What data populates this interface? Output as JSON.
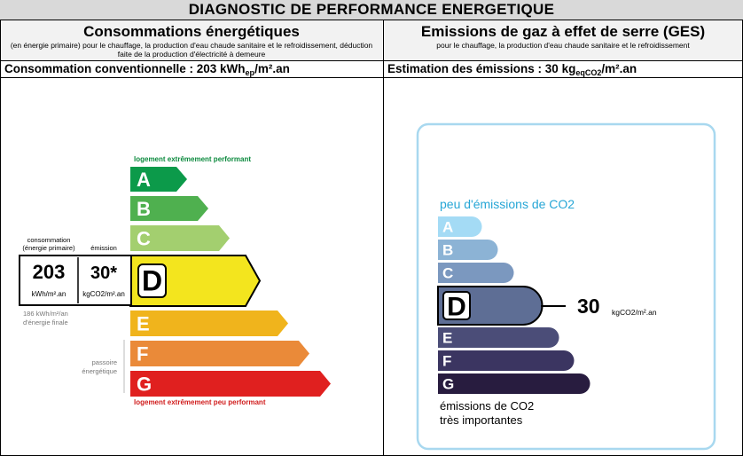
{
  "title": "DIAGNOSTIC DE PERFORMANCE ENERGETIQUE",
  "energy": {
    "heading": "Consommations énergétiques",
    "subheading": "(en énergie primaire) pour le chauffage, la production d'eau chaude sanitaire et le refroidissement, déduction faite de la production d'électricité à demeure",
    "consumption_prefix": "Consommation conventionnelle : 203 kWh",
    "consumption_sub": "ep",
    "consumption_suffix": "/m².an",
    "top_label": "logement extrêmement performant",
    "bottom_label": "logement extrêmement peu performant",
    "classes": [
      "A",
      "B",
      "C",
      "D",
      "E",
      "F",
      "G"
    ],
    "class_colors": [
      "#0c9a4a",
      "#4fb04f",
      "#a3cf6f",
      "#f3e51e",
      "#f0b41c",
      "#ea8a39",
      "#e0201f"
    ],
    "current_class": "D",
    "indicator": {
      "label_consumption_line1": "consommation",
      "label_consumption_line2": "(énergie primaire)",
      "label_emission": "émission",
      "value_consumption": "203",
      "value_emission": "30*",
      "unit_consumption": "kWh/m².an",
      "unit_emission": "kgCO2/m².an",
      "final_line1": "186 kWh/m²/an",
      "final_line2": "d'énergie finale"
    },
    "side_note_line1": "passoire",
    "side_note_line2": "énergétique"
  },
  "ges": {
    "heading": "Emissions de gaz à effet de serre (GES)",
    "subheading": "pour le chauffage, la production d'eau chaude sanitaire et le refroidissement",
    "estimation_prefix": "Estimation des émissions : 30 kg",
    "estimation_sub": "eqCO2",
    "estimation_suffix": "/m².an",
    "top_label": "peu d'émissions de CO2",
    "bottom_label_line1": "émissions de CO2",
    "bottom_label_line2": "très importantes",
    "classes": [
      "A",
      "B",
      "C",
      "D",
      "E",
      "F",
      "G"
    ],
    "class_colors": [
      "#a4dbf5",
      "#8cb3d5",
      "#7b98bf",
      "#5e6e95",
      "#4b4d78",
      "#3b3561",
      "#281c3f"
    ],
    "current_class": "D",
    "value": "30",
    "unit": "kgCO2/m².an",
    "box_border_color": "#a8d8ef",
    "top_label_color": "#26a6d6"
  }
}
